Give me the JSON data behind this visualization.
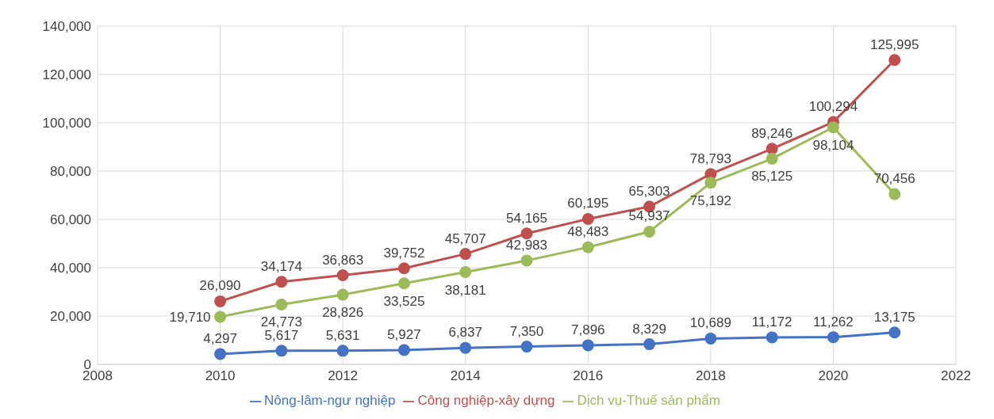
{
  "chart_data": {
    "type": "line",
    "x": [
      2010,
      2011,
      2012,
      2013,
      2014,
      2015,
      2016,
      2017,
      2018,
      2019,
      2020,
      2021
    ],
    "series": [
      {
        "name": "Nông-lâm-ngư nghiệp",
        "color": "#4472c4",
        "values": [
          4297,
          5617,
          5631,
          5927,
          6837,
          7350,
          7896,
          8329,
          10689,
          11172,
          11262,
          13175
        ],
        "value_labels": [
          "4,297",
          "5,617",
          "5,631",
          "5,927",
          "6,837",
          "7,350",
          "7,896",
          "8,329",
          "10,689",
          "11,172",
          "11,262",
          "13,175"
        ]
      },
      {
        "name": "Công nghiệp-xây dựng",
        "color": "#c0504d",
        "values": [
          26090,
          34174,
          36863,
          39752,
          45707,
          54165,
          60195,
          65303,
          78793,
          89246,
          100294,
          125995
        ],
        "value_labels": [
          "26,090",
          "34,174",
          "36,863",
          "39,752",
          "45,707",
          "54,165",
          "60,195",
          "65,303",
          "78,793",
          "89,246",
          "100,294",
          "125,995"
        ]
      },
      {
        "name": "Dịch vụ-Thuế sản phẩm",
        "color": "#9bbb59",
        "values": [
          19710,
          24773,
          28826,
          33525,
          38181,
          42983,
          48483,
          54937,
          75192,
          85125,
          98104,
          70456
        ],
        "value_labels": [
          "19,710",
          "24,773",
          "28,826",
          "33,525",
          "38,181",
          "42,983",
          "48,483",
          "54,937",
          "75,192",
          "85,125",
          "98,104",
          "70,456"
        ]
      }
    ],
    "xlim": [
      2008,
      2022
    ],
    "xticks": [
      2008,
      2010,
      2012,
      2014,
      2016,
      2018,
      2020,
      2022
    ],
    "ylim": [
      0,
      140000
    ],
    "yticks": [
      0,
      {
        "value": 20000,
        "label": "20,000"
      },
      {
        "value": 40000,
        "label": "40,000"
      },
      {
        "value": 60000,
        "label": "60,000"
      },
      {
        "value": 80000,
        "label": "80,000"
      },
      {
        "value": 100000,
        "label": "100,000"
      },
      {
        "value": 120000,
        "label": "120,000"
      },
      {
        "value": 140000,
        "label": "140,000"
      }
    ],
    "grid": true,
    "legend": "bottom",
    "marker": "circle",
    "line_style": "solid"
  }
}
